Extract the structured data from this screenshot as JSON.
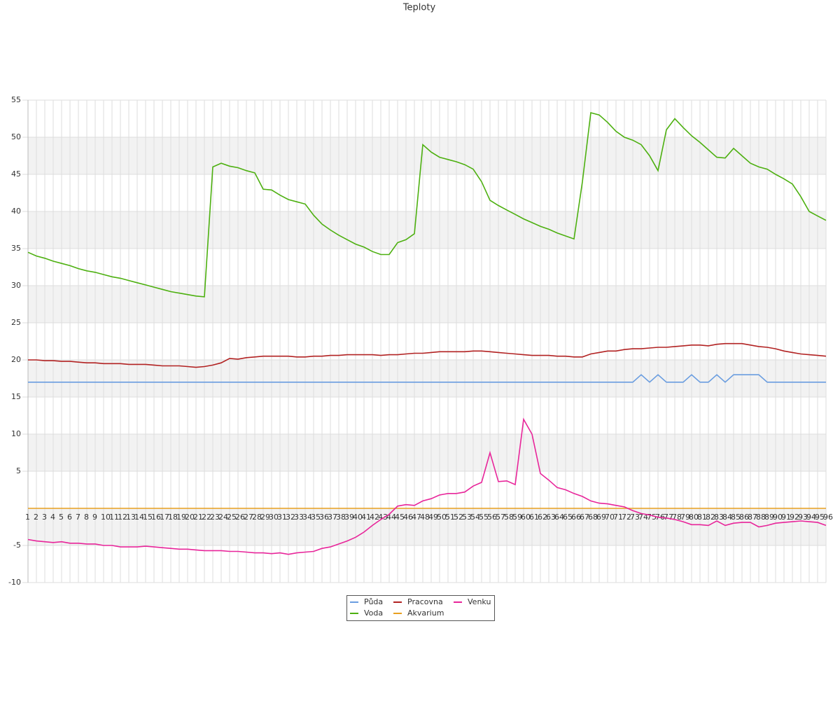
{
  "chart_data": {
    "type": "line",
    "title": "Teploty",
    "categories": [
      "1",
      "2",
      "3",
      "4",
      "5",
      "6",
      "7",
      "8",
      "9",
      "10",
      "11",
      "12",
      "13",
      "14",
      "15",
      "16",
      "17",
      "18",
      "19",
      "20",
      "21",
      "22",
      "23",
      "24",
      "25",
      "26",
      "27",
      "28",
      "29",
      "30",
      "31",
      "32",
      "33",
      "34",
      "35",
      "36",
      "37",
      "38",
      "39",
      "40",
      "41",
      "42",
      "43",
      "44",
      "45",
      "46",
      "47",
      "48",
      "49",
      "50",
      "51",
      "52",
      "53",
      "54",
      "55",
      "56",
      "57",
      "58",
      "59",
      "60",
      "61",
      "62",
      "63",
      "64",
      "65",
      "66",
      "67",
      "68",
      "69",
      "70",
      "71",
      "72",
      "73",
      "74",
      "75",
      "76",
      "77",
      "78",
      "79",
      "80",
      "81",
      "82",
      "83",
      "84",
      "85",
      "86",
      "87",
      "88",
      "89",
      "90",
      "91",
      "92",
      "93",
      "94",
      "95",
      "96"
    ],
    "series": [
      {
        "name": "Půda",
        "color": "#6a9de0",
        "values": [
          17,
          17,
          17,
          17,
          17,
          17,
          17,
          17,
          17,
          17,
          17,
          17,
          17,
          17,
          17,
          17,
          17,
          17,
          17,
          17,
          17,
          17,
          17,
          17,
          17,
          17,
          17,
          17,
          17,
          17,
          17,
          17,
          17,
          17,
          17,
          17,
          17,
          17,
          17,
          17,
          17,
          17,
          17,
          17,
          17,
          17,
          17,
          17,
          17,
          17,
          17,
          17,
          17,
          17,
          17,
          17,
          17,
          17,
          17,
          17,
          17,
          17,
          17,
          17,
          17,
          17,
          17,
          17,
          17,
          17,
          17,
          17,
          17,
          18,
          17,
          18,
          17,
          17,
          17,
          18,
          17,
          17,
          18,
          17,
          18,
          18,
          18,
          18,
          17,
          17,
          17,
          17,
          17,
          17,
          17,
          17
        ]
      },
      {
        "name": "Voda",
        "color": "#4db010",
        "values": [
          34.5,
          34.0,
          33.7,
          33.3,
          33.0,
          32.7,
          32.3,
          32.0,
          31.8,
          31.5,
          31.2,
          31.0,
          30.7,
          30.4,
          30.1,
          29.8,
          29.5,
          29.2,
          29.0,
          28.8,
          28.6,
          28.5,
          46.0,
          46.5,
          46.1,
          45.9,
          45.5,
          45.2,
          43.0,
          42.9,
          42.2,
          41.6,
          41.3,
          41.0,
          39.5,
          38.3,
          37.5,
          36.8,
          36.2,
          35.6,
          35.2,
          34.6,
          34.2,
          34.2,
          35.8,
          36.2,
          37.0,
          49.0,
          48.0,
          47.3,
          47.0,
          46.7,
          46.3,
          45.7,
          44.0,
          41.5,
          40.8,
          40.2,
          39.6,
          39.0,
          38.5,
          38.0,
          37.6,
          37.1,
          36.7,
          36.3,
          44.0,
          53.3,
          53.0,
          52.0,
          50.8,
          50.0,
          49.6,
          49.0,
          47.5,
          45.5,
          51.0,
          52.5,
          51.3,
          50.2,
          49.3,
          48.3,
          47.3,
          47.2,
          48.5,
          47.5,
          46.5,
          46.0,
          45.7,
          45.0,
          44.4,
          43.7,
          42.0,
          40.0,
          39.4,
          38.8
        ]
      },
      {
        "name": "Pracovna",
        "color": "#b22222",
        "values": [
          20.0,
          20.0,
          19.9,
          19.9,
          19.8,
          19.8,
          19.7,
          19.6,
          19.6,
          19.5,
          19.5,
          19.5,
          19.4,
          19.4,
          19.4,
          19.3,
          19.2,
          19.2,
          19.2,
          19.1,
          19.0,
          19.1,
          19.3,
          19.6,
          20.2,
          20.1,
          20.3,
          20.4,
          20.5,
          20.5,
          20.5,
          20.5,
          20.4,
          20.4,
          20.5,
          20.5,
          20.6,
          20.6,
          20.7,
          20.7,
          20.7,
          20.7,
          20.6,
          20.7,
          20.7,
          20.8,
          20.9,
          20.9,
          21.0,
          21.1,
          21.1,
          21.1,
          21.1,
          21.2,
          21.2,
          21.1,
          21.0,
          20.9,
          20.8,
          20.7,
          20.6,
          20.6,
          20.6,
          20.5,
          20.5,
          20.4,
          20.4,
          20.8,
          21.0,
          21.2,
          21.2,
          21.4,
          21.5,
          21.5,
          21.6,
          21.7,
          21.7,
          21.8,
          21.9,
          22.0,
          22.0,
          21.9,
          22.1,
          22.2,
          22.2,
          22.2,
          22.0,
          21.8,
          21.7,
          21.5,
          21.2,
          21.0,
          20.8,
          20.7,
          20.6,
          20.5
        ]
      },
      {
        "name": "Akvarium",
        "color": "#e8a020",
        "values": [
          0,
          0,
          0,
          0,
          0,
          0,
          0,
          0,
          0,
          0,
          0,
          0,
          0,
          0,
          0,
          0,
          0,
          0,
          0,
          0,
          0,
          0,
          0,
          0,
          0,
          0,
          0,
          0,
          0,
          0,
          0,
          0,
          0,
          0,
          0,
          0,
          0,
          0,
          0,
          0,
          0,
          0,
          0,
          0,
          0,
          0,
          0,
          0,
          0,
          0,
          0,
          0,
          0,
          0,
          0,
          0,
          0,
          0,
          0,
          0,
          0,
          0,
          0,
          0,
          0,
          0,
          0,
          0,
          0,
          0,
          0,
          0,
          0,
          0,
          0,
          0,
          0,
          0,
          0,
          0,
          0,
          0,
          0,
          0,
          0,
          0,
          0,
          0,
          0,
          0,
          0,
          0,
          0,
          0,
          0,
          0
        ]
      },
      {
        "name": "Venku",
        "color": "#e8259a",
        "values": [
          -4.2,
          -4.4,
          -4.5,
          -4.6,
          -4.5,
          -4.7,
          -4.7,
          -4.8,
          -4.8,
          -5.0,
          -5.0,
          -5.2,
          -5.2,
          -5.2,
          -5.1,
          -5.2,
          -5.3,
          -5.4,
          -5.5,
          -5.5,
          -5.6,
          -5.7,
          -5.7,
          -5.7,
          -5.8,
          -5.8,
          -5.9,
          -6.0,
          -6.0,
          -6.1,
          -6.0,
          -6.2,
          -6.0,
          -5.9,
          -5.8,
          -5.4,
          -5.2,
          -4.8,
          -4.4,
          -3.9,
          -3.2,
          -2.3,
          -1.5,
          -0.8,
          0.3,
          0.5,
          0.4,
          1.0,
          1.3,
          1.8,
          2.0,
          2.0,
          2.2,
          3.0,
          3.5,
          7.5,
          3.6,
          3.7,
          3.2,
          12.0,
          10.0,
          4.7,
          3.8,
          2.8,
          2.5,
          2.0,
          1.6,
          1.0,
          0.7,
          0.6,
          0.4,
          0.2,
          -0.3,
          -0.7,
          -0.9,
          -1.2,
          -1.3,
          -1.5,
          -1.8,
          -2.2,
          -2.2,
          -2.3,
          -1.7,
          -2.3,
          -2.0,
          -1.9,
          -1.9,
          -2.5,
          -2.3,
          -2.0,
          -1.9,
          -1.8,
          -1.7,
          -1.8,
          -1.9,
          -2.3
        ]
      }
    ],
    "ylim": [
      -10,
      55
    ],
    "yticks": [
      -10,
      -5,
      5,
      10,
      15,
      20,
      25,
      30,
      35,
      40,
      45,
      50,
      55
    ],
    "grid": true,
    "legend": "bottom"
  }
}
